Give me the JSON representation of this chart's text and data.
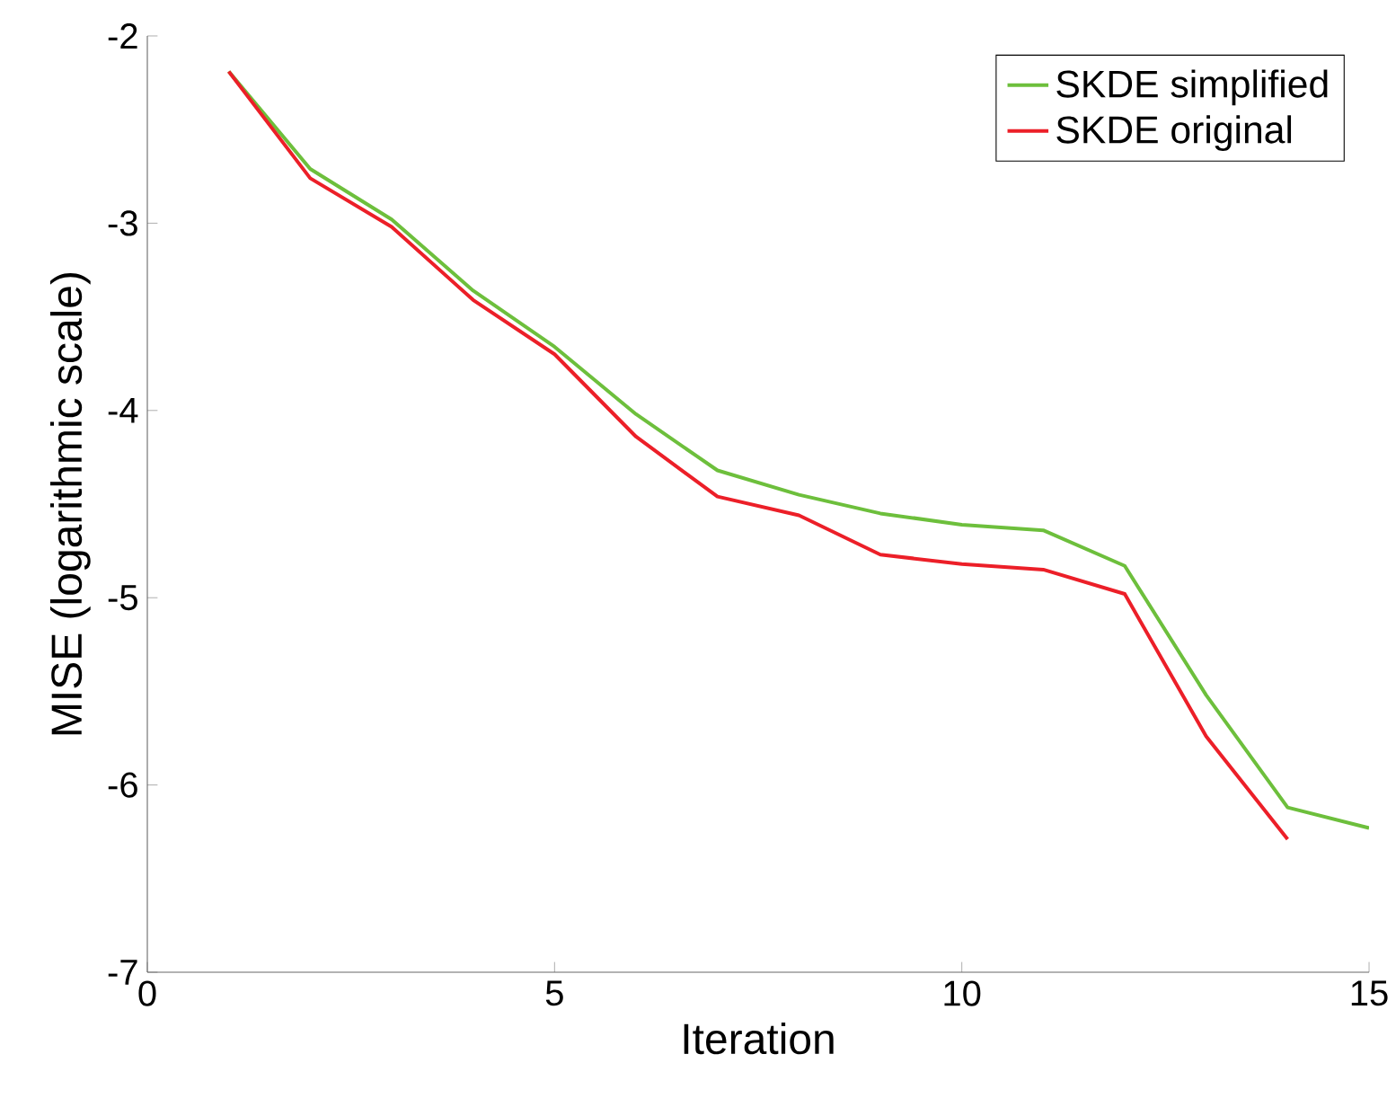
{
  "chart_data": {
    "type": "line",
    "xlabel": "Iteration",
    "ylabel": "MISE (logarithmic scale)",
    "x": [
      1,
      2,
      3,
      4,
      5,
      6,
      7,
      8,
      9,
      10,
      11,
      12,
      13,
      14,
      15
    ],
    "series": [
      {
        "name": "SKDE simplified",
        "color": "#6dbf3c",
        "values": [
          -2.19,
          -2.71,
          -2.98,
          -3.36,
          -3.66,
          -4.02,
          -4.32,
          -4.45,
          -4.55,
          -4.61,
          -4.64,
          -4.83,
          -5.52,
          -6.12,
          -6.23
        ]
      },
      {
        "name": "SKDE original",
        "color": "#ec1f28",
        "values": [
          -2.19,
          -2.76,
          -3.02,
          -3.41,
          -3.7,
          -4.14,
          -4.46,
          -4.56,
          -4.77,
          -4.82,
          -4.85,
          -4.98,
          -5.74,
          -6.29,
          null
        ]
      }
    ],
    "xlim": [
      0,
      15
    ],
    "xticks": [
      0,
      5,
      10,
      15
    ],
    "ylim": [
      -7,
      -2
    ],
    "yticks": [
      -7,
      -6,
      -5,
      -4,
      -3,
      -2
    ],
    "grid": false,
    "legend": "top right",
    "marker": "none",
    "line_style": "solid"
  }
}
